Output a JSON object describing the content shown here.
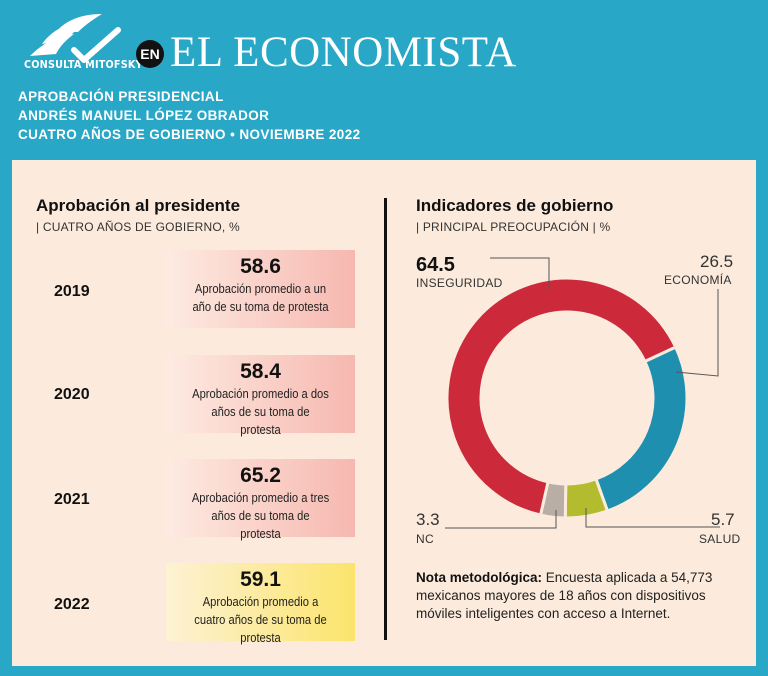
{
  "header": {
    "logo_text": "CONSULTA MITOFSKY",
    "en_badge": "EN",
    "brand": "EL ECONOMISTA",
    "line1": "APROBACIÓN PRESIDENCIAL",
    "line2": "ANDRÉS MANUEL LÓPEZ OBRADOR",
    "line3": "CUATRO AÑOS DE GOBIERNO • NOVIEMBRE 2022"
  },
  "approval": {
    "title": "Aprobación al presidente",
    "subtitle": "| CUATRO AÑOS DE GOBIERNO, %",
    "rows": [
      {
        "year": "2019",
        "value": "58.6",
        "desc": "Aprobación promedio a un año de su toma de protesta"
      },
      {
        "year": "2020",
        "value": "58.4",
        "desc": "Aprobación promedio a dos años de su toma de protesta"
      },
      {
        "year": "2021",
        "value": "65.2",
        "desc": "Aprobación promedio a tres años de su toma de protesta"
      },
      {
        "year": "2022",
        "value": "59.1",
        "desc": "Aprobación promedio a cuatro años de su toma de protesta"
      }
    ]
  },
  "indicators": {
    "title": "Indicadores de gobierno",
    "subtitle": "| PRINCIPAL PREOCUPACIÓN | %"
  },
  "note": {
    "heading": "Nota metodológica:",
    "text": "Encuesta aplicada a 54,773 mexicanos mayores de 18 años con dispositivos móviles inteligentes con acceso a Internet."
  },
  "colors": {
    "inseguridad": "#cc2a3a",
    "economia": "#1e8fae",
    "salud": "#b3bb2e",
    "nc": "#b8aea6"
  },
  "chart_data": {
    "type": "pie",
    "title": "Indicadores de gobierno",
    "subtitle": "| PRINCIPAL PREOCUPACIÓN | %",
    "categories": [
      "INSEGURIDAD",
      "ECONOMÍA",
      "SALUD",
      "NC"
    ],
    "values": [
      64.5,
      26.5,
      5.7,
      3.3
    ],
    "labels": [
      "64.5",
      "26.5",
      "5.7",
      "3.3"
    ]
  }
}
